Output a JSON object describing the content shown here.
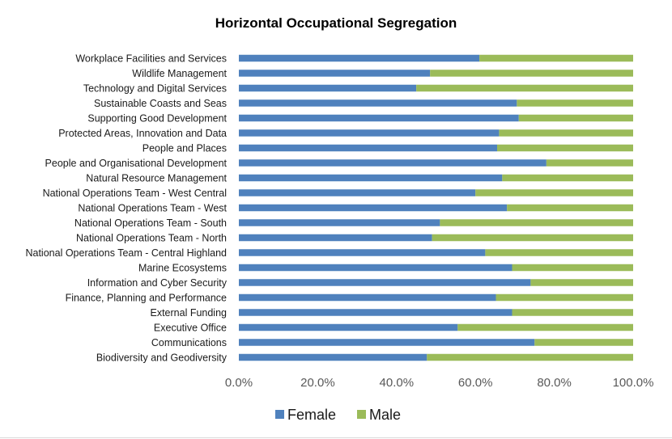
{
  "chart_data": {
    "type": "bar",
    "orientation": "horizontal",
    "stacked": true,
    "title": "Horizontal Occupational Segregation",
    "xlabel": "",
    "ylabel": "",
    "xlim": [
      0,
      100
    ],
    "xticks": [
      0,
      20,
      40,
      60,
      80,
      100
    ],
    "xtick_labels": [
      "0.0%",
      "20.0%",
      "40.0%",
      "60.0%",
      "80.0%",
      "100.0%"
    ],
    "grid": false,
    "legend_position": "bottom",
    "categories": [
      "Workplace Facilities and Services",
      "Wildlife Management",
      "Technology and Digital Services",
      "Sustainable Coasts and Seas",
      "Supporting Good Development",
      "Protected Areas, Innovation and Data",
      "People and Places",
      "People and Organisational Development",
      "Natural Resource Management",
      "National Operations Team - West Central",
      "National Operations Team - West",
      "National Operations Team - South",
      "National Operations Team - North",
      "National Operations Team - Central Highland",
      "Marine Ecosystems",
      "Information and Cyber Security",
      "Finance, Planning and Performance",
      "External Funding",
      "Executive Office",
      "Communications",
      "Biodiversity and Geodiversity"
    ],
    "series": [
      {
        "name": "Female",
        "color": "#4f81bd",
        "values": [
          61,
          48.5,
          45,
          70.5,
          71,
          66,
          65.5,
          78,
          66.8,
          60,
          68,
          51,
          49,
          62.5,
          69.3,
          74,
          65.2,
          69.3,
          55.5,
          75,
          47.7
        ]
      },
      {
        "name": "Male",
        "color": "#9bbb59",
        "values": [
          39,
          51.5,
          55,
          29.5,
          29,
          34,
          34.5,
          22,
          33.2,
          40,
          32,
          49,
          51,
          37.5,
          30.7,
          26,
          34.8,
          30.7,
          44.5,
          25,
          52.3
        ]
      }
    ]
  }
}
